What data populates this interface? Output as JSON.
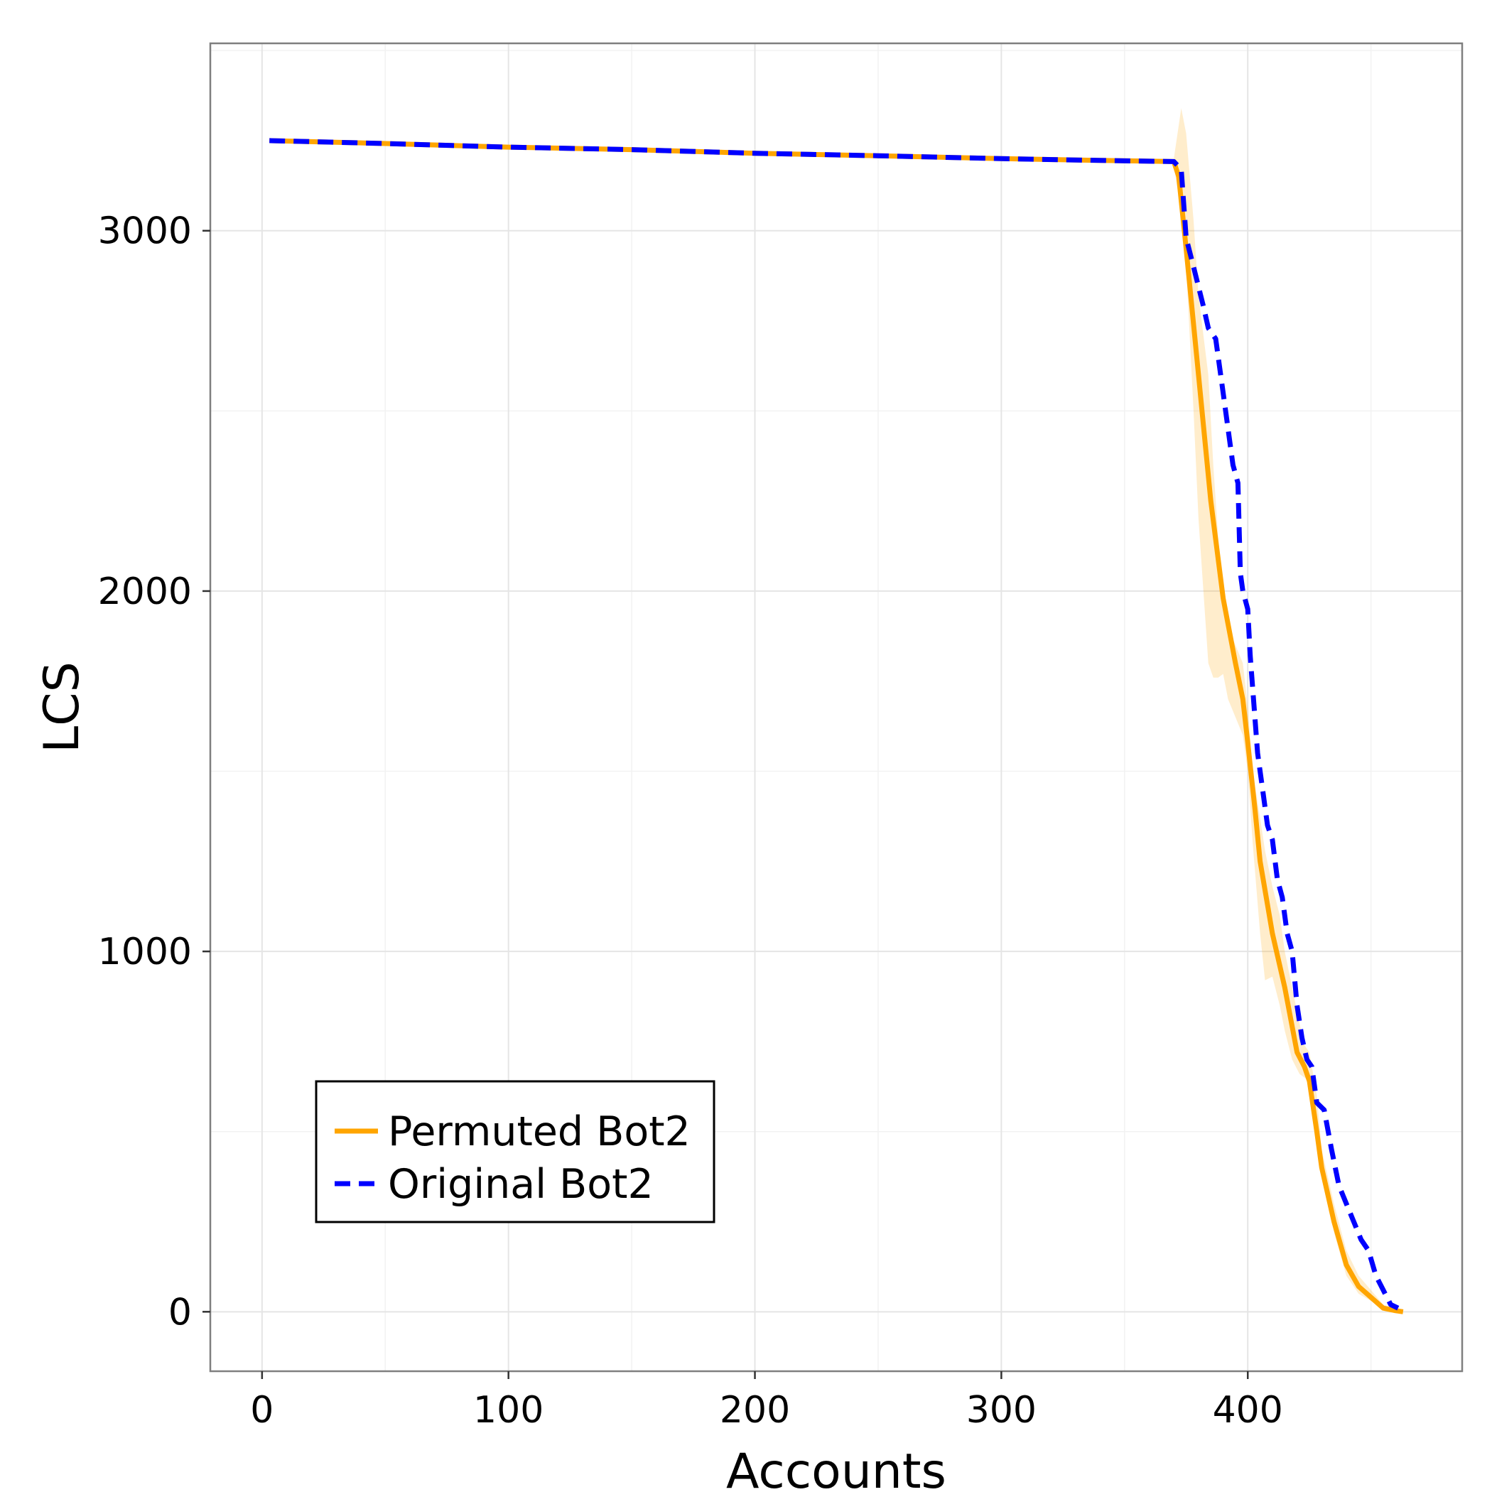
{
  "chart_data": {
    "type": "line",
    "title": "",
    "xlabel": "Accounts",
    "ylabel": "LCS",
    "xlim": [
      -21,
      487
    ],
    "ylim": [
      -165,
      3520
    ],
    "xticks": [
      0,
      100,
      200,
      300,
      400
    ],
    "xtick_labels": [
      "0",
      "100",
      "200",
      "300",
      "400"
    ],
    "yticks": [
      0,
      1000,
      2000,
      3000
    ],
    "ytick_labels": [
      "0",
      "1000",
      "2000",
      "3000"
    ],
    "grid": true,
    "legend_position": "bottom-left",
    "series": [
      {
        "name": "Permuted Bot2",
        "color": "#FFA500",
        "style": "solid",
        "x": [
          3,
          50,
          100,
          150,
          200,
          250,
          300,
          340,
          370,
          372,
          375,
          380,
          385,
          390,
          395,
          398,
          400,
          403,
          405,
          410,
          415,
          420,
          423,
          425,
          428,
          430,
          435,
          440,
          445,
          450,
          455,
          460,
          463
        ],
        "y": [
          3250,
          3242,
          3232,
          3225,
          3215,
          3208,
          3200,
          3195,
          3192,
          3150,
          2950,
          2600,
          2250,
          1980,
          1800,
          1700,
          1580,
          1390,
          1250,
          1050,
          900,
          720,
          680,
          640,
          500,
          400,
          250,
          130,
          70,
          40,
          10,
          3,
          0
        ]
      },
      {
        "name": "Original Bot2",
        "color": "#0000FF",
        "style": "dashed",
        "x": [
          3,
          50,
          100,
          150,
          200,
          250,
          300,
          340,
          370,
          373,
          375,
          378,
          382,
          384,
          387,
          390,
          394,
          396,
          397,
          398,
          400,
          401,
          404,
          406,
          408,
          410,
          412,
          414,
          416,
          418,
          420,
          422,
          424,
          426,
          428,
          431,
          434,
          437,
          440,
          443,
          446,
          449,
          452,
          455,
          458,
          461
        ],
        "y": [
          3250,
          3242,
          3232,
          3225,
          3215,
          3208,
          3200,
          3195,
          3192,
          3170,
          2980,
          2900,
          2790,
          2730,
          2700,
          2550,
          2350,
          2300,
          2050,
          2000,
          1950,
          1820,
          1550,
          1450,
          1350,
          1310,
          1200,
          1150,
          1050,
          1000,
          850,
          760,
          700,
          680,
          580,
          560,
          450,
          350,
          300,
          250,
          200,
          170,
          100,
          60,
          20,
          10
        ]
      }
    ],
    "band": {
      "series": "Permuted Bot2",
      "color": "#FFA500",
      "opacity": 0.2,
      "x": [
        370,
        373,
        375,
        378,
        380,
        384,
        386,
        388,
        390,
        392,
        395,
        398,
        400,
        402,
        405,
        407,
        410,
        413,
        415,
        418,
        421,
        423,
        425,
        428,
        430,
        435,
        440,
        445,
        450,
        455,
        460,
        463
      ],
      "y_low": [
        3180,
        3050,
        2900,
        2500,
        2200,
        1800,
        1760,
        1760,
        1770,
        1700,
        1650,
        1600,
        1500,
        1300,
        1050,
        920,
        930,
        850,
        780,
        700,
        660,
        650,
        640,
        500,
        380,
        220,
        100,
        50,
        30,
        5,
        0,
        0
      ],
      "y_high": [
        3200,
        3340,
        3270,
        3030,
        2820,
        2600,
        2350,
        2150,
        2000,
        1900,
        1850,
        1800,
        1680,
        1500,
        1370,
        1280,
        1180,
        1100,
        1000,
        900,
        800,
        740,
        720,
        600,
        450,
        300,
        170,
        100,
        60,
        20,
        8,
        3
      ]
    }
  }
}
